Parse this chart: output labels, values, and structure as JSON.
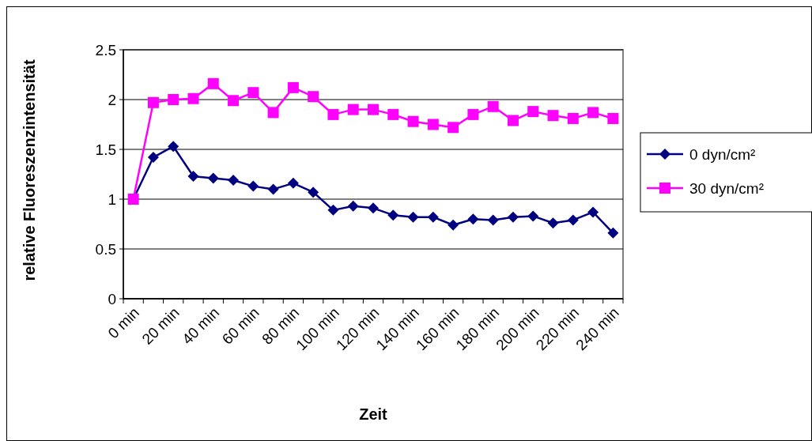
{
  "chart_data": {
    "type": "line",
    "xlabel": "Zeit",
    "ylabel": "relative Fluoreszenzintensität",
    "categories": [
      "0 min",
      null,
      "20 min",
      null,
      "40 min",
      null,
      "60 min",
      null,
      "80 min",
      null,
      "100 min",
      null,
      "120 min",
      null,
      "140 min",
      null,
      "160 min",
      null,
      "180 min",
      null,
      "200 min",
      null,
      "220 min",
      null,
      "240 min"
    ],
    "series": [
      {
        "name": "0 dyn/cm²",
        "color": "#000080",
        "marker": "diamond",
        "values": [
          1,
          1.42,
          1.53,
          1.23,
          1.21,
          1.19,
          1.13,
          1.1,
          1.16,
          1.07,
          0.89,
          0.93,
          0.91,
          0.84,
          0.82,
          0.82,
          0.74,
          0.8,
          0.79,
          0.82,
          0.83,
          0.76,
          0.79,
          0.87,
          0.66
        ]
      },
      {
        "name": "30 dyn/cm²",
        "color": "#ff00ff",
        "marker": "square",
        "values": [
          1,
          1.97,
          2,
          2.01,
          2.16,
          1.99,
          2.07,
          1.87,
          2.12,
          2.03,
          1.85,
          1.9,
          1.9,
          1.85,
          1.78,
          1.75,
          1.72,
          1.85,
          1.93,
          1.79,
          1.88,
          1.84,
          1.81,
          1.87,
          1.81
        ]
      }
    ],
    "ylim": [
      0,
      2.5
    ],
    "yticks": [
      0,
      0.5,
      1,
      1.5,
      2,
      2.5
    ],
    "grid": "y",
    "legend": "right"
  }
}
